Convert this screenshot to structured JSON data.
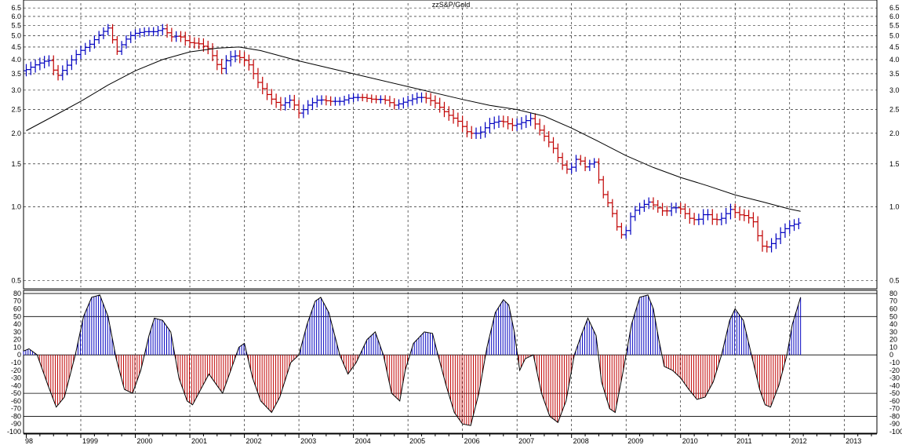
{
  "chart_data": [
    {
      "type": "ohlc",
      "title": "zzS&P/Gold",
      "scale": "log",
      "ylim": [
        0.47,
        6.8
      ],
      "y_ticks": [
        "0.5",
        "1.0",
        "1.5",
        "2.0",
        "2.5",
        "3.0",
        "3.5",
        "4.0",
        "4.5",
        "5.0",
        "5.5",
        "6.0",
        "6.5"
      ],
      "x_ticks": [
        "98",
        "1999",
        "2000",
        "2001",
        "2002",
        "2003",
        "2004",
        "2005",
        "2006",
        "2007",
        "2008",
        "2009",
        "2010",
        "2011",
        "2012",
        "2013"
      ],
      "colors": {
        "up": "#0000c0",
        "down": "#c00000",
        "ma": "#000000",
        "grid": "#000000"
      },
      "grid": true,
      "ma_line": [
        [
          1998.0,
          2.05
        ],
        [
          1998.5,
          2.35
        ],
        [
          1999.0,
          2.7
        ],
        [
          1999.5,
          3.15
        ],
        [
          2000.0,
          3.6
        ],
        [
          2000.5,
          4.0
        ],
        [
          2001.0,
          4.3
        ],
        [
          2001.5,
          4.45
        ],
        [
          2001.9,
          4.5
        ],
        [
          2002.3,
          4.35
        ],
        [
          2003.0,
          3.95
        ],
        [
          2004.0,
          3.5
        ],
        [
          2005.0,
          3.1
        ],
        [
          2006.0,
          2.75
        ],
        [
          2006.5,
          2.6
        ],
        [
          2007.0,
          2.5
        ],
        [
          2007.5,
          2.35
        ],
        [
          2008.0,
          2.1
        ],
        [
          2008.5,
          1.85
        ],
        [
          2009.0,
          1.62
        ],
        [
          2009.5,
          1.45
        ],
        [
          2010.0,
          1.32
        ],
        [
          2010.5,
          1.22
        ],
        [
          2011.0,
          1.12
        ],
        [
          2011.5,
          1.05
        ],
        [
          2012.0,
          0.98
        ],
        [
          2012.2,
          0.96
        ]
      ],
      "price_series": [
        [
          1998.0,
          3.6
        ],
        [
          1998.2,
          3.8
        ],
        [
          1998.45,
          4.0
        ],
        [
          1998.6,
          3.4
        ],
        [
          1998.75,
          3.7
        ],
        [
          1999.0,
          4.3
        ],
        [
          1999.2,
          4.6
        ],
        [
          1999.4,
          5.1
        ],
        [
          1999.55,
          5.4
        ],
        [
          1999.7,
          4.3
        ],
        [
          1999.85,
          4.8
        ],
        [
          2000.0,
          5.1
        ],
        [
          2000.2,
          5.2
        ],
        [
          2000.4,
          5.2
        ],
        [
          2000.55,
          5.35
        ],
        [
          2000.7,
          4.95
        ],
        [
          2000.85,
          5.0
        ],
        [
          2001.0,
          4.7
        ],
        [
          2001.2,
          4.65
        ],
        [
          2001.4,
          4.4
        ],
        [
          2001.6,
          3.6
        ],
        [
          2001.75,
          4.1
        ],
        [
          2001.9,
          4.15
        ],
        [
          2002.1,
          3.9
        ],
        [
          2002.3,
          3.2
        ],
        [
          2002.5,
          2.8
        ],
        [
          2002.7,
          2.6
        ],
        [
          2002.9,
          2.75
        ],
        [
          2003.05,
          2.4
        ],
        [
          2003.2,
          2.6
        ],
        [
          2003.4,
          2.75
        ],
        [
          2003.6,
          2.7
        ],
        [
          2003.8,
          2.7
        ],
        [
          2004.0,
          2.8
        ],
        [
          2004.2,
          2.8
        ],
        [
          2004.4,
          2.75
        ],
        [
          2004.6,
          2.75
        ],
        [
          2004.8,
          2.6
        ],
        [
          2005.0,
          2.7
        ],
        [
          2005.2,
          2.8
        ],
        [
          2005.35,
          2.8
        ],
        [
          2005.55,
          2.65
        ],
        [
          2005.75,
          2.4
        ],
        [
          2005.95,
          2.25
        ],
        [
          2006.15,
          2.0
        ],
        [
          2006.35,
          2.0
        ],
        [
          2006.55,
          2.2
        ],
        [
          2006.75,
          2.25
        ],
        [
          2006.95,
          2.15
        ],
        [
          2007.1,
          2.2
        ],
        [
          2007.3,
          2.3
        ],
        [
          2007.5,
          2.0
        ],
        [
          2007.7,
          1.75
        ],
        [
          2007.85,
          1.5
        ],
        [
          2008.0,
          1.4
        ],
        [
          2008.15,
          1.6
        ],
        [
          2008.3,
          1.45
        ],
        [
          2008.45,
          1.55
        ],
        [
          2008.6,
          1.15
        ],
        [
          2008.75,
          1.0
        ],
        [
          2008.9,
          0.8
        ],
        [
          2009.0,
          0.75
        ],
        [
          2009.15,
          0.95
        ],
        [
          2009.3,
          1.0
        ],
        [
          2009.45,
          1.05
        ],
        [
          2009.6,
          1.0
        ],
        [
          2009.75,
          0.95
        ],
        [
          2009.9,
          1.0
        ],
        [
          2010.05,
          0.98
        ],
        [
          2010.2,
          0.9
        ],
        [
          2010.35,
          0.88
        ],
        [
          2010.5,
          0.95
        ],
        [
          2010.65,
          0.88
        ],
        [
          2010.8,
          0.9
        ],
        [
          2010.95,
          0.98
        ],
        [
          2011.1,
          0.93
        ],
        [
          2011.25,
          0.92
        ],
        [
          2011.4,
          0.86
        ],
        [
          2011.5,
          0.7
        ],
        [
          2011.6,
          0.68
        ],
        [
          2011.75,
          0.72
        ],
        [
          2011.9,
          0.8
        ],
        [
          2012.05,
          0.84
        ],
        [
          2012.2,
          0.86
        ]
      ]
    },
    {
      "type": "oscillator",
      "ylim": [
        -100,
        82
      ],
      "y_ticks": [
        "80",
        "70",
        "60",
        "50",
        "40",
        "30",
        "20",
        "10",
        "0",
        "-10",
        "-20",
        "-30",
        "-40",
        "-50",
        "-60",
        "-70",
        "-80",
        "-90",
        "-100"
      ],
      "reference_lines": [
        80,
        50,
        0,
        -50,
        -80
      ],
      "colors": {
        "positive": "#0000c0",
        "negative": "#c00000",
        "line": "#000000"
      },
      "series": [
        [
          1997.95,
          5
        ],
        [
          1998.05,
          8
        ],
        [
          1998.2,
          0
        ],
        [
          1998.4,
          -40
        ],
        [
          1998.55,
          -68
        ],
        [
          1998.7,
          -55
        ],
        [
          1998.9,
          0
        ],
        [
          1999.05,
          50
        ],
        [
          1999.2,
          75
        ],
        [
          1999.35,
          78
        ],
        [
          1999.5,
          50
        ],
        [
          1999.65,
          -5
        ],
        [
          1999.8,
          -45
        ],
        [
          1999.95,
          -50
        ],
        [
          2000.1,
          -20
        ],
        [
          2000.25,
          25
        ],
        [
          2000.35,
          48
        ],
        [
          2000.5,
          45
        ],
        [
          2000.65,
          30
        ],
        [
          2000.8,
          -30
        ],
        [
          2000.95,
          -60
        ],
        [
          2001.05,
          -65
        ],
        [
          2001.2,
          -45
        ],
        [
          2001.35,
          -25
        ],
        [
          2001.5,
          -40
        ],
        [
          2001.6,
          -50
        ],
        [
          2001.75,
          -20
        ],
        [
          2001.9,
          10
        ],
        [
          2002.0,
          15
        ],
        [
          2002.15,
          -30
        ],
        [
          2002.3,
          -60
        ],
        [
          2002.5,
          -75
        ],
        [
          2002.65,
          -55
        ],
        [
          2002.85,
          -10
        ],
        [
          2003.0,
          0
        ],
        [
          2003.15,
          40
        ],
        [
          2003.3,
          70
        ],
        [
          2003.4,
          75
        ],
        [
          2003.55,
          55
        ],
        [
          2003.75,
          0
        ],
        [
          2003.9,
          -25
        ],
        [
          2004.05,
          -10
        ],
        [
          2004.25,
          20
        ],
        [
          2004.4,
          30
        ],
        [
          2004.55,
          0
        ],
        [
          2004.7,
          -50
        ],
        [
          2004.85,
          -60
        ],
        [
          2004.95,
          -20
        ],
        [
          2005.1,
          15
        ],
        [
          2005.3,
          30
        ],
        [
          2005.45,
          28
        ],
        [
          2005.55,
          0
        ],
        [
          2005.7,
          -40
        ],
        [
          2005.85,
          -75
        ],
        [
          2006.0,
          -90
        ],
        [
          2006.15,
          -92
        ],
        [
          2006.3,
          -50
        ],
        [
          2006.45,
          10
        ],
        [
          2006.6,
          55
        ],
        [
          2006.75,
          72
        ],
        [
          2006.85,
          65
        ],
        [
          2006.95,
          30
        ],
        [
          2007.05,
          -20
        ],
        [
          2007.15,
          -5
        ],
        [
          2007.3,
          0
        ],
        [
          2007.45,
          -50
        ],
        [
          2007.6,
          -80
        ],
        [
          2007.75,
          -88
        ],
        [
          2007.9,
          -60
        ],
        [
          2008.05,
          0
        ],
        [
          2008.2,
          30
        ],
        [
          2008.3,
          48
        ],
        [
          2008.45,
          25
        ],
        [
          2008.55,
          -35
        ],
        [
          2008.7,
          -70
        ],
        [
          2008.8,
          -75
        ],
        [
          2008.95,
          -20
        ],
        [
          2009.1,
          40
        ],
        [
          2009.25,
          75
        ],
        [
          2009.4,
          78
        ],
        [
          2009.5,
          60
        ],
        [
          2009.6,
          20
        ],
        [
          2009.7,
          -15
        ],
        [
          2009.85,
          -20
        ],
        [
          2010.0,
          -30
        ],
        [
          2010.15,
          -45
        ],
        [
          2010.3,
          -58
        ],
        [
          2010.45,
          -55
        ],
        [
          2010.6,
          -35
        ],
        [
          2010.75,
          0
        ],
        [
          2010.9,
          45
        ],
        [
          2011.0,
          60
        ],
        [
          2011.15,
          45
        ],
        [
          2011.3,
          0
        ],
        [
          2011.45,
          -45
        ],
        [
          2011.55,
          -65
        ],
        [
          2011.65,
          -68
        ],
        [
          2011.8,
          -40
        ],
        [
          2011.95,
          0
        ],
        [
          2012.05,
          40
        ],
        [
          2012.2,
          75
        ]
      ]
    }
  ]
}
